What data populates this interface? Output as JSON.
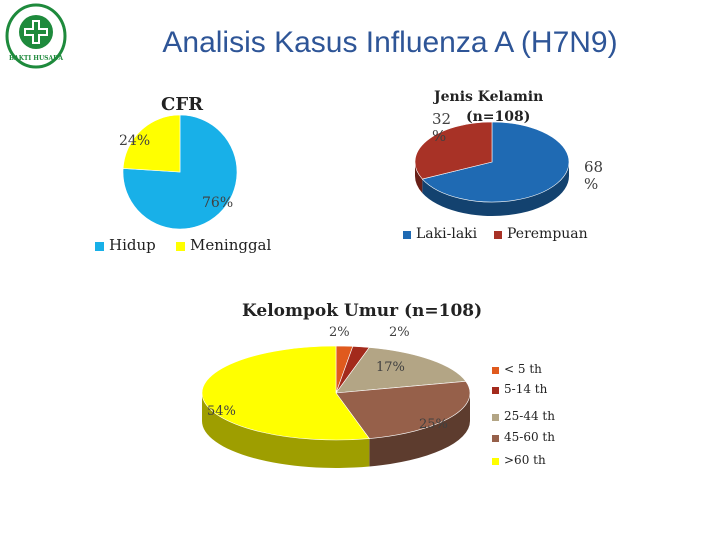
{
  "slide": {
    "title": "Analisis Kasus Influenza A (H7N9)",
    "logo_text": "BAKTI HUSADA"
  },
  "colors": {
    "title": "#2e5597",
    "logo_green": "#1e8a3c"
  },
  "chart_data": [
    {
      "type": "pie",
      "title": "CFR",
      "categories": [
        "Hidup",
        "Meninggal"
      ],
      "values": [
        76,
        24
      ],
      "labels": [
        "76%",
        "24%"
      ],
      "colors": [
        "#18b0e8",
        "#ffff00"
      ],
      "legend": "bottom"
    },
    {
      "type": "pie",
      "title": "Jenis Kelamin",
      "subtitle": "(n=108)",
      "categories": [
        "Laki-laki",
        "Perempuan"
      ],
      "values": [
        68,
        32
      ],
      "labels": [
        "68\n%",
        "32\n%"
      ],
      "colors": [
        "#1f6ab3",
        "#a83226"
      ],
      "legend": "bottom"
    },
    {
      "type": "pie",
      "title": "Kelompok Umur (n=108)",
      "categories": [
        "< 5 th",
        "5-14 th",
        "25-44 th",
        "45-60 th",
        ">60 th"
      ],
      "values": [
        2,
        2,
        17,
        25,
        54
      ],
      "labels": [
        "2%",
        "2%",
        "17%",
        "25%",
        "54%"
      ],
      "colors": [
        "#e05a1e",
        "#a32a1c",
        "#b3a585",
        "#96604a",
        "#ffff00"
      ],
      "legend": "right"
    }
  ]
}
